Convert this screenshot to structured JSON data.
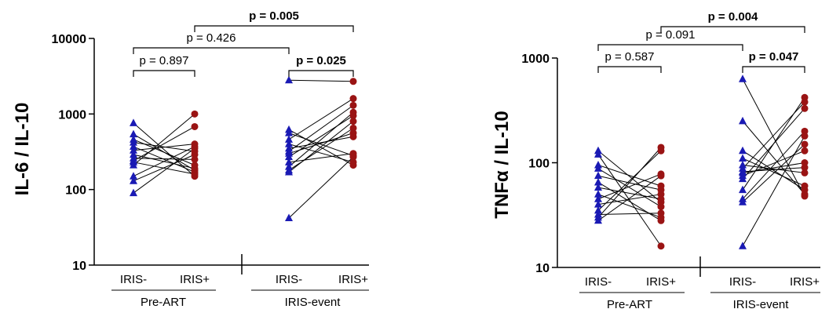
{
  "colors": {
    "iris_minus": "#1a1ab4",
    "iris_plus": "#9a1414",
    "axis": "#000000"
  },
  "chart_data": [
    {
      "type": "scatter",
      "ylabel": "IL-6 / IL-10",
      "yscale": "log",
      "ylim": [
        10,
        10000
      ],
      "yticks": [
        "10",
        "100",
        "1000",
        "10000"
      ],
      "categories": [
        "IRIS-",
        "IRIS+",
        "IRIS-",
        "IRIS+"
      ],
      "groups": [
        "Pre-ART",
        "IRIS-event"
      ],
      "series": [
        {
          "name": "IRIS-",
          "marker": "triangle",
          "pre_art": [
            760,
            540,
            460,
            420,
            370,
            330,
            290,
            260,
            240,
            230,
            210,
            150,
            130,
            90
          ],
          "iris_event": [
            2800,
            620,
            560,
            460,
            400,
            350,
            320,
            300,
            270,
            230,
            200,
            180,
            170,
            42
          ]
        },
        {
          "name": "IRIS+",
          "marker": "circle",
          "pre_art": [
            1000,
            680,
            400,
            370,
            350,
            320,
            290,
            250,
            210,
            190,
            180,
            170,
            160,
            150
          ],
          "iris_event": [
            2700,
            1600,
            1300,
            1050,
            950,
            800,
            650,
            560,
            500,
            300,
            280,
            270,
            230,
            210
          ]
        }
      ],
      "pairs_pre_art": [
        [
          90,
          350
        ],
        [
          130,
          290
        ],
        [
          150,
          370
        ],
        [
          210,
          1000
        ],
        [
          230,
          160
        ],
        [
          240,
          680
        ],
        [
          260,
          250
        ],
        [
          290,
          190
        ],
        [
          330,
          400
        ],
        [
          370,
          170
        ],
        [
          420,
          320
        ],
        [
          460,
          210
        ],
        [
          540,
          180
        ],
        [
          760,
          150
        ]
      ],
      "pairs_iris_event": [
        [
          42,
          270
        ],
        [
          170,
          800
        ],
        [
          180,
          650
        ],
        [
          200,
          1050
        ],
        [
          230,
          300
        ],
        [
          270,
          950
        ],
        [
          300,
          560
        ],
        [
          320,
          1300
        ],
        [
          350,
          500
        ],
        [
          400,
          230
        ],
        [
          460,
          1600
        ],
        [
          560,
          280
        ],
        [
          620,
          210
        ],
        [
          2800,
          2700
        ]
      ],
      "annotations": [
        {
          "text": "p = 0.897",
          "bold": false,
          "from": 0,
          "to": 1
        },
        {
          "text": "p = 0.426",
          "bold": false,
          "from": 0,
          "to": 2
        },
        {
          "text": "p = 0.005",
          "bold": true,
          "from": 1,
          "to": 3
        },
        {
          "text": "p = 0.025",
          "bold": true,
          "from": 2,
          "to": 3
        }
      ]
    },
    {
      "type": "scatter",
      "ylabel": "TNFα / IL-10",
      "yscale": "log",
      "ylim": [
        10,
        1000
      ],
      "yticks": [
        "10",
        "100",
        "1000"
      ],
      "categories": [
        "IRIS-",
        "IRIS+",
        "IRIS-",
        "IRIS+"
      ],
      "groups": [
        "Pre-ART",
        "IRIS-event"
      ],
      "series": [
        {
          "name": "IRIS-",
          "marker": "triangle",
          "pre_art": [
            130,
            120,
            95,
            88,
            75,
            65,
            58,
            50,
            45,
            40,
            35,
            32,
            30,
            28
          ],
          "iris_event": [
            630,
            250,
            130,
            110,
            95,
            88,
            82,
            80,
            75,
            70,
            55,
            45,
            42,
            16
          ]
        },
        {
          "name": "IRIS+",
          "marker": "circle",
          "pre_art": [
            140,
            130,
            78,
            75,
            60,
            55,
            50,
            45,
            42,
            38,
            33,
            30,
            28,
            16
          ],
          "iris_event": [
            420,
            380,
            330,
            200,
            180,
            150,
            130,
            100,
            90,
            80,
            60,
            55,
            50,
            48
          ]
        }
      ],
      "pairs_pre_art": [
        [
          28,
          75
        ],
        [
          30,
          140
        ],
        [
          32,
          33
        ],
        [
          35,
          130
        ],
        [
          40,
          50
        ],
        [
          45,
          78
        ],
        [
          50,
          30
        ],
        [
          58,
          45
        ],
        [
          65,
          28
        ],
        [
          75,
          55
        ],
        [
          88,
          38
        ],
        [
          95,
          60
        ],
        [
          120,
          16
        ],
        [
          130,
          42
        ]
      ],
      "pairs_iris_event": [
        [
          16,
          180
        ],
        [
          42,
          150
        ],
        [
          45,
          200
        ],
        [
          55,
          420
        ],
        [
          70,
          330
        ],
        [
          75,
          130
        ],
        [
          80,
          100
        ],
        [
          82,
          90
        ],
        [
          88,
          380
        ],
        [
          95,
          80
        ],
        [
          110,
          60
        ],
        [
          130,
          55
        ],
        [
          250,
          50
        ],
        [
          630,
          48
        ]
      ],
      "annotations": [
        {
          "text": "p = 0.587",
          "bold": false,
          "from": 0,
          "to": 1
        },
        {
          "text": "p = 0.091",
          "bold": false,
          "from": 0,
          "to": 2
        },
        {
          "text": "p = 0.004",
          "bold": true,
          "from": 1,
          "to": 3
        },
        {
          "text": "p = 0.047",
          "bold": true,
          "from": 2,
          "to": 3
        }
      ]
    }
  ]
}
